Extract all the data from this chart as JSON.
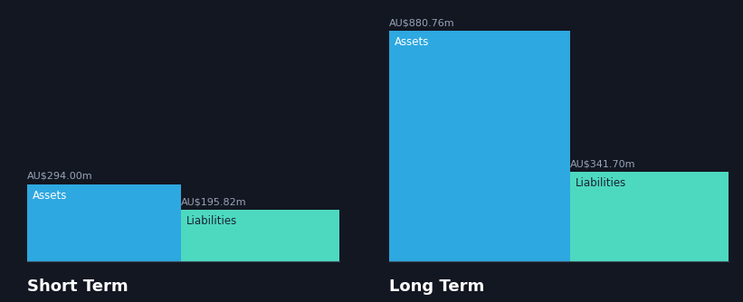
{
  "background_color": "#131722",
  "bar_color_assets": "#2ea8e0",
  "bar_color_liabilities": "#4dd9c0",
  "text_color_white": "#ffffff",
  "text_color_label": "#9aa5b8",
  "text_color_dark": "#1a2235",
  "short_term": {
    "assets_value": 294.0,
    "liabilities_value": 195.82,
    "label": "Short Term"
  },
  "long_term": {
    "assets_value": 880.76,
    "liabilities_value": 341.7,
    "label": "Long Term"
  },
  "label_assets": "Assets",
  "label_liabilities": "Liabilities",
  "value_label_fontsize": 8.0,
  "bar_label_fontsize": 8.5,
  "section_label_fontsize": 13
}
